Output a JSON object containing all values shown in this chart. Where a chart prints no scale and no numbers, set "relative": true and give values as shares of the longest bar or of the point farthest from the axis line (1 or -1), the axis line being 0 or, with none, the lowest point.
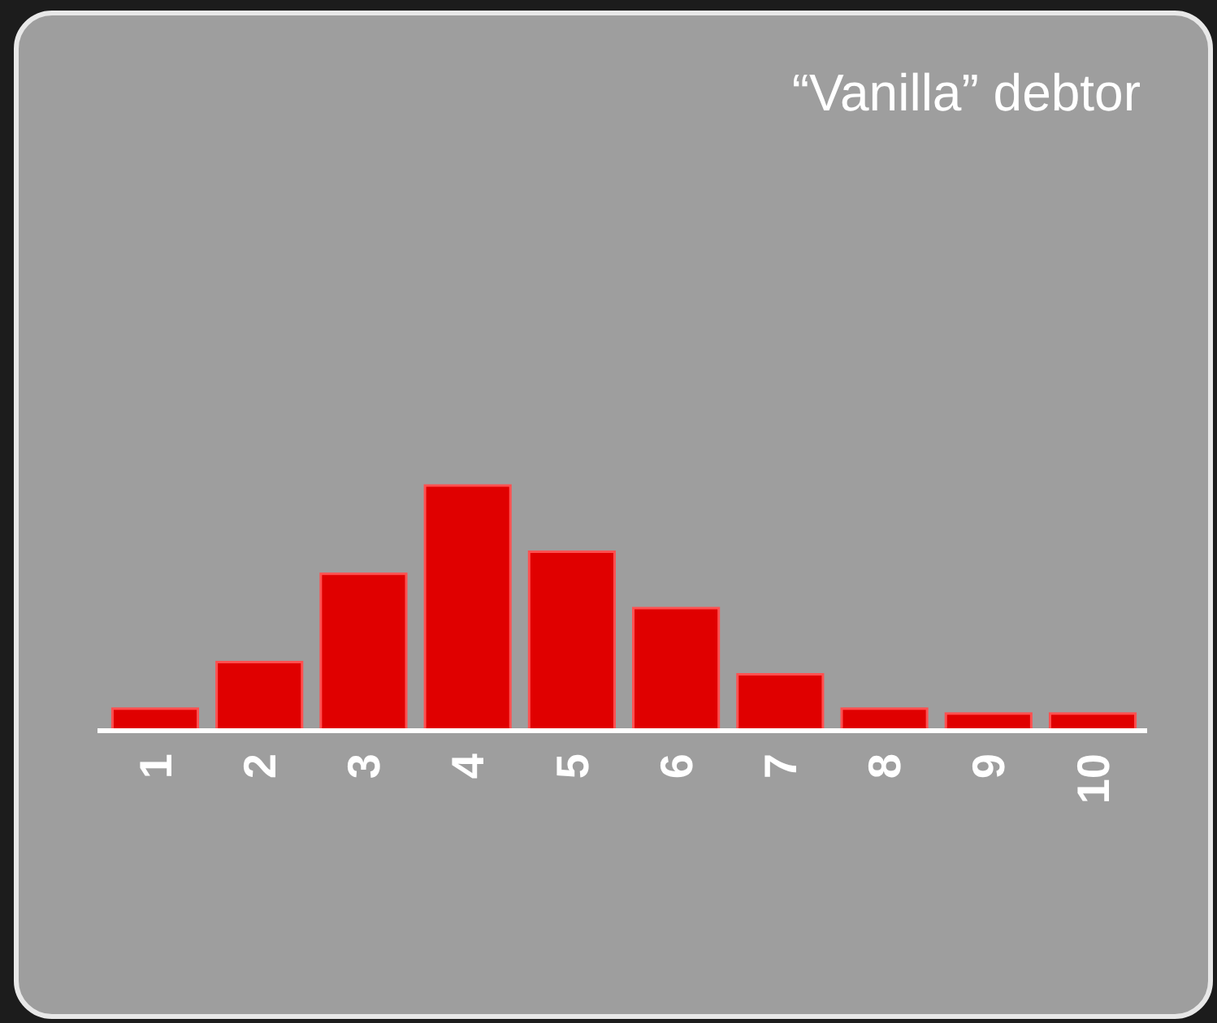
{
  "chart_data": {
    "type": "bar",
    "title": "“Vanilla” debtor",
    "relative": true,
    "categories": [
      "1",
      "2",
      "3",
      "4",
      "5",
      "6",
      "7",
      "8",
      "9",
      "10"
    ],
    "values": [
      0.09,
      0.28,
      0.64,
      1,
      0.73,
      0.5,
      0.23,
      0.09,
      0.07,
      0.07
    ],
    "color": "#e00000"
  }
}
